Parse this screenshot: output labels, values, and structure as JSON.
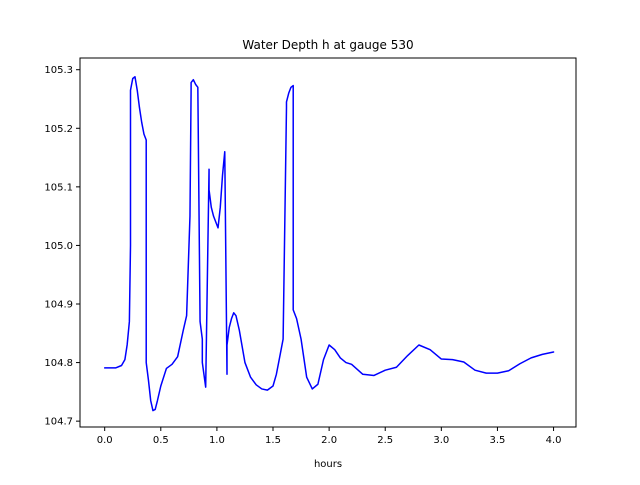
{
  "chart_data": {
    "type": "line",
    "title": "Water Depth h at gauge 530",
    "xlabel": "hours",
    "ylabel": "",
    "xlim": [
      -0.22,
      4.2
    ],
    "ylim": [
      104.69,
      105.32
    ],
    "xticks": [
      0.0,
      0.5,
      1.0,
      1.5,
      2.0,
      2.5,
      3.0,
      3.5,
      4.0
    ],
    "xtick_labels": [
      "0.0",
      "0.5",
      "1.0",
      "1.5",
      "2.0",
      "2.5",
      "3.0",
      "3.5",
      "4.0"
    ],
    "yticks": [
      104.7,
      104.8,
      104.9,
      105.0,
      105.1,
      105.2,
      105.3
    ],
    "ytick_labels": [
      "104.7",
      "104.8",
      "104.9",
      "105.0",
      "105.1",
      "105.2",
      "105.3"
    ],
    "grid": false,
    "series": [
      {
        "color": "#0000ff",
        "x": [
          0.0,
          0.1,
          0.15,
          0.18,
          0.2,
          0.22,
          0.23,
          0.23,
          0.25,
          0.27,
          0.29,
          0.31,
          0.33,
          0.35,
          0.37,
          0.37,
          0.39,
          0.41,
          0.43,
          0.45,
          0.47,
          0.5,
          0.55,
          0.6,
          0.65,
          0.7,
          0.73,
          0.76,
          0.77,
          0.77,
          0.79,
          0.81,
          0.83,
          0.85,
          0.87,
          0.87,
          0.9,
          0.93,
          0.93,
          0.95,
          0.97,
          0.99,
          1.01,
          1.03,
          1.05,
          1.07,
          1.09,
          1.09,
          1.11,
          1.13,
          1.15,
          1.17,
          1.2,
          1.25,
          1.3,
          1.35,
          1.4,
          1.45,
          1.5,
          1.53,
          1.56,
          1.59,
          1.62,
          1.62,
          1.64,
          1.66,
          1.68,
          1.68,
          1.71,
          1.75,
          1.8,
          1.85,
          1.9,
          1.95,
          2.0,
          2.05,
          2.1,
          2.15,
          2.2,
          2.3,
          2.4,
          2.5,
          2.6,
          2.7,
          2.8,
          2.9,
          3.0,
          3.1,
          3.2,
          3.3,
          3.4,
          3.5,
          3.6,
          3.7,
          3.8,
          3.9,
          4.0
        ],
        "y": [
          104.791,
          104.791,
          104.795,
          104.805,
          104.83,
          104.87,
          105.0,
          105.265,
          105.285,
          105.288,
          105.265,
          105.235,
          105.21,
          105.19,
          105.18,
          104.8,
          104.77,
          104.735,
          104.718,
          104.72,
          104.735,
          104.76,
          104.79,
          104.797,
          104.81,
          104.855,
          104.88,
          105.05,
          105.265,
          105.278,
          105.283,
          105.275,
          105.27,
          104.87,
          104.84,
          104.8,
          104.758,
          105.13,
          105.095,
          105.065,
          105.05,
          105.04,
          105.03,
          105.065,
          105.12,
          105.16,
          104.78,
          104.83,
          104.86,
          104.875,
          104.885,
          104.88,
          104.855,
          104.8,
          104.775,
          104.762,
          104.755,
          104.753,
          104.76,
          104.78,
          104.81,
          104.84,
          105.235,
          105.245,
          105.26,
          105.27,
          105.273,
          104.89,
          104.875,
          104.84,
          104.775,
          104.755,
          104.763,
          104.805,
          104.83,
          104.822,
          104.808,
          104.8,
          104.797,
          104.78,
          104.778,
          104.787,
          104.792,
          104.812,
          104.83,
          104.822,
          104.806,
          104.805,
          104.801,
          104.787,
          104.782,
          104.782,
          104.786,
          104.798,
          104.808,
          104.814,
          104.818
        ]
      }
    ]
  }
}
